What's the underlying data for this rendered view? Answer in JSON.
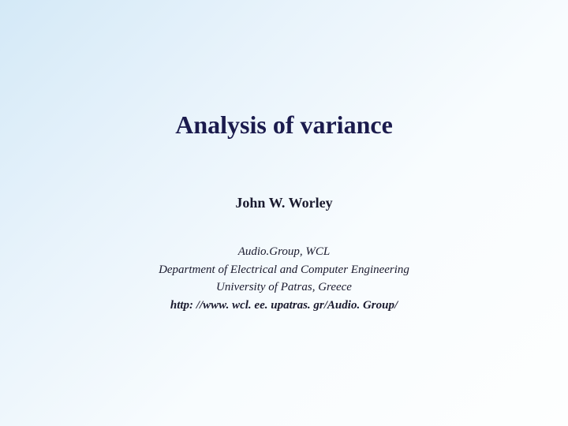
{
  "slide": {
    "title": "Analysis of variance",
    "author": "John W. Worley",
    "affiliation": {
      "line1": "Audio.Group, WCL",
      "line2": "Department of Electrical and Computer Engineering",
      "line3": "University of Patras, Greece",
      "url": "http: //www. wcl. ee. upatras. gr/Audio. Group/"
    },
    "styling": {
      "background_gradient_start": "#d4e9f7",
      "background_gradient_end": "#fdfefe",
      "title_color": "#1b1b4d",
      "title_fontsize": 32,
      "author_fontsize": 18,
      "affiliation_fontsize": 15,
      "text_color": "#1a1a2e",
      "font_family": "Georgia, Times New Roman, serif"
    }
  }
}
